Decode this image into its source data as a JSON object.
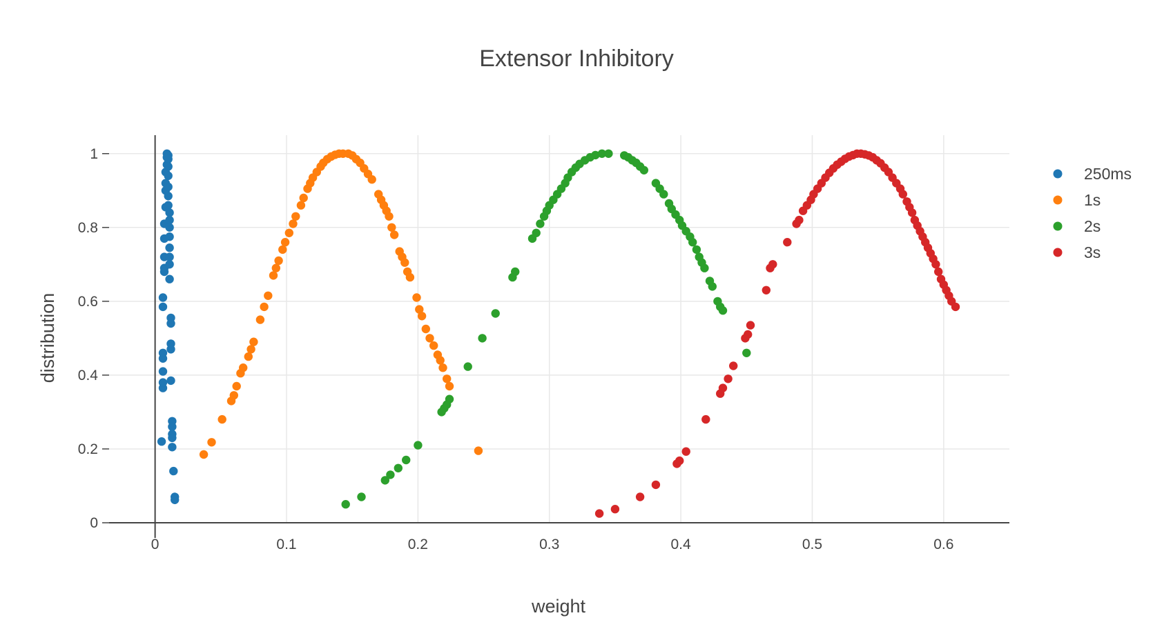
{
  "chart_data": {
    "type": "scatter",
    "title": "Extensor Inhibitory",
    "xlabel": "weight",
    "ylabel": "distribution",
    "xlim": [
      -0.035,
      0.65
    ],
    "ylim": [
      0,
      1.05
    ],
    "x_ticks": [
      0,
      0.1,
      0.2,
      0.3,
      0.4,
      0.5,
      0.6
    ],
    "x_tick_labels": [
      "0",
      "0.1",
      "0.2",
      "0.3",
      "0.4",
      "0.5",
      "0.6"
    ],
    "y_ticks": [
      0,
      0.2,
      0.4,
      0.6,
      0.8,
      1
    ],
    "y_tick_labels": [
      "0",
      "0.2",
      "0.4",
      "0.6",
      "0.8",
      "1"
    ],
    "grid": true,
    "legend_position": "top-right",
    "series": [
      {
        "name": "250ms",
        "color": "#1f77b4",
        "points": [
          [
            0.005,
            0.22
          ],
          [
            0.006,
            0.365
          ],
          [
            0.006,
            0.38
          ],
          [
            0.006,
            0.41
          ],
          [
            0.006,
            0.445
          ],
          [
            0.006,
            0.46
          ],
          [
            0.006,
            0.585
          ],
          [
            0.006,
            0.61
          ],
          [
            0.007,
            0.68
          ],
          [
            0.007,
            0.69
          ],
          [
            0.007,
            0.72
          ],
          [
            0.007,
            0.77
          ],
          [
            0.007,
            0.81
          ],
          [
            0.008,
            0.855
          ],
          [
            0.008,
            0.9
          ],
          [
            0.008,
            0.92
          ],
          [
            0.008,
            0.95
          ],
          [
            0.009,
            0.97
          ],
          [
            0.009,
            0.99
          ],
          [
            0.009,
            1.0
          ],
          [
            0.01,
            0.995
          ],
          [
            0.01,
            0.985
          ],
          [
            0.01,
            0.965
          ],
          [
            0.01,
            0.94
          ],
          [
            0.01,
            0.91
          ],
          [
            0.01,
            0.885
          ],
          [
            0.01,
            0.86
          ],
          [
            0.011,
            0.84
          ],
          [
            0.011,
            0.82
          ],
          [
            0.011,
            0.8
          ],
          [
            0.011,
            0.775
          ],
          [
            0.011,
            0.745
          ],
          [
            0.011,
            0.72
          ],
          [
            0.011,
            0.7
          ],
          [
            0.011,
            0.66
          ],
          [
            0.012,
            0.555
          ],
          [
            0.012,
            0.54
          ],
          [
            0.012,
            0.485
          ],
          [
            0.012,
            0.47
          ],
          [
            0.012,
            0.385
          ],
          [
            0.013,
            0.275
          ],
          [
            0.013,
            0.26
          ],
          [
            0.013,
            0.24
          ],
          [
            0.013,
            0.23
          ],
          [
            0.013,
            0.205
          ],
          [
            0.014,
            0.14
          ],
          [
            0.015,
            0.07
          ],
          [
            0.015,
            0.062
          ]
        ]
      },
      {
        "name": "1s",
        "color": "#ff7f0e",
        "points": [
          [
            0.037,
            0.185
          ],
          [
            0.043,
            0.218
          ],
          [
            0.051,
            0.28
          ],
          [
            0.058,
            0.33
          ],
          [
            0.06,
            0.345
          ],
          [
            0.062,
            0.37
          ],
          [
            0.065,
            0.405
          ],
          [
            0.067,
            0.42
          ],
          [
            0.071,
            0.45
          ],
          [
            0.073,
            0.47
          ],
          [
            0.075,
            0.49
          ],
          [
            0.08,
            0.55
          ],
          [
            0.083,
            0.585
          ],
          [
            0.086,
            0.615
          ],
          [
            0.09,
            0.67
          ],
          [
            0.092,
            0.69
          ],
          [
            0.094,
            0.71
          ],
          [
            0.097,
            0.74
          ],
          [
            0.099,
            0.76
          ],
          [
            0.102,
            0.785
          ],
          [
            0.105,
            0.81
          ],
          [
            0.107,
            0.83
          ],
          [
            0.111,
            0.86
          ],
          [
            0.113,
            0.88
          ],
          [
            0.116,
            0.905
          ],
          [
            0.118,
            0.92
          ],
          [
            0.12,
            0.935
          ],
          [
            0.123,
            0.95
          ],
          [
            0.126,
            0.965
          ],
          [
            0.128,
            0.975
          ],
          [
            0.131,
            0.985
          ],
          [
            0.134,
            0.992
          ],
          [
            0.137,
            0.997
          ],
          [
            0.14,
            1.0
          ],
          [
            0.143,
            1.0
          ],
          [
            0.147,
            1.0
          ],
          [
            0.15,
            0.995
          ],
          [
            0.153,
            0.985
          ],
          [
            0.156,
            0.975
          ],
          [
            0.159,
            0.96
          ],
          [
            0.162,
            0.945
          ],
          [
            0.165,
            0.93
          ],
          [
            0.17,
            0.89
          ],
          [
            0.172,
            0.875
          ],
          [
            0.174,
            0.86
          ],
          [
            0.176,
            0.845
          ],
          [
            0.178,
            0.83
          ],
          [
            0.18,
            0.8
          ],
          [
            0.182,
            0.78
          ],
          [
            0.186,
            0.735
          ],
          [
            0.188,
            0.72
          ],
          [
            0.19,
            0.705
          ],
          [
            0.192,
            0.68
          ],
          [
            0.194,
            0.665
          ],
          [
            0.199,
            0.61
          ],
          [
            0.201,
            0.578
          ],
          [
            0.203,
            0.56
          ],
          [
            0.206,
            0.525
          ],
          [
            0.209,
            0.5
          ],
          [
            0.212,
            0.48
          ],
          [
            0.215,
            0.455
          ],
          [
            0.217,
            0.44
          ],
          [
            0.219,
            0.42
          ],
          [
            0.222,
            0.39
          ],
          [
            0.224,
            0.37
          ],
          [
            0.246,
            0.195
          ]
        ]
      },
      {
        "name": "2s",
        "color": "#2ca02c",
        "points": [
          [
            0.145,
            0.05
          ],
          [
            0.157,
            0.07
          ],
          [
            0.175,
            0.115
          ],
          [
            0.179,
            0.13
          ],
          [
            0.185,
            0.148
          ],
          [
            0.191,
            0.17
          ],
          [
            0.2,
            0.21
          ],
          [
            0.218,
            0.3
          ],
          [
            0.22,
            0.31
          ],
          [
            0.222,
            0.32
          ],
          [
            0.224,
            0.335
          ],
          [
            0.238,
            0.423
          ],
          [
            0.249,
            0.5
          ],
          [
            0.259,
            0.567
          ],
          [
            0.272,
            0.665
          ],
          [
            0.274,
            0.68
          ],
          [
            0.287,
            0.77
          ],
          [
            0.29,
            0.785
          ],
          [
            0.293,
            0.81
          ],
          [
            0.296,
            0.83
          ],
          [
            0.298,
            0.845
          ],
          [
            0.3,
            0.86
          ],
          [
            0.303,
            0.875
          ],
          [
            0.306,
            0.89
          ],
          [
            0.309,
            0.905
          ],
          [
            0.312,
            0.92
          ],
          [
            0.314,
            0.935
          ],
          [
            0.317,
            0.95
          ],
          [
            0.32,
            0.962
          ],
          [
            0.323,
            0.972
          ],
          [
            0.327,
            0.982
          ],
          [
            0.331,
            0.99
          ],
          [
            0.335,
            0.996
          ],
          [
            0.34,
            1.0
          ],
          [
            0.345,
            1.0
          ],
          [
            0.357,
            0.995
          ],
          [
            0.36,
            0.99
          ],
          [
            0.363,
            0.982
          ],
          [
            0.366,
            0.975
          ],
          [
            0.369,
            0.965
          ],
          [
            0.372,
            0.955
          ],
          [
            0.381,
            0.92
          ],
          [
            0.384,
            0.905
          ],
          [
            0.387,
            0.89
          ],
          [
            0.391,
            0.865
          ],
          [
            0.393,
            0.85
          ],
          [
            0.396,
            0.835
          ],
          [
            0.399,
            0.82
          ],
          [
            0.401,
            0.805
          ],
          [
            0.404,
            0.79
          ],
          [
            0.407,
            0.775
          ],
          [
            0.409,
            0.76
          ],
          [
            0.412,
            0.74
          ],
          [
            0.414,
            0.72
          ],
          [
            0.416,
            0.705
          ],
          [
            0.418,
            0.69
          ],
          [
            0.422,
            0.655
          ],
          [
            0.424,
            0.64
          ],
          [
            0.428,
            0.6
          ],
          [
            0.43,
            0.585
          ],
          [
            0.432,
            0.575
          ],
          [
            0.45,
            0.46
          ]
        ]
      },
      {
        "name": "3s",
        "color": "#d62728",
        "points": [
          [
            0.338,
            0.025
          ],
          [
            0.35,
            0.037
          ],
          [
            0.369,
            0.07
          ],
          [
            0.381,
            0.103
          ],
          [
            0.397,
            0.16
          ],
          [
            0.399,
            0.168
          ],
          [
            0.404,
            0.193
          ],
          [
            0.419,
            0.28
          ],
          [
            0.43,
            0.35
          ],
          [
            0.432,
            0.365
          ],
          [
            0.436,
            0.39
          ],
          [
            0.44,
            0.425
          ],
          [
            0.449,
            0.5
          ],
          [
            0.451,
            0.51
          ],
          [
            0.453,
            0.535
          ],
          [
            0.465,
            0.63
          ],
          [
            0.468,
            0.69
          ],
          [
            0.47,
            0.7
          ],
          [
            0.481,
            0.76
          ],
          [
            0.488,
            0.81
          ],
          [
            0.49,
            0.82
          ],
          [
            0.493,
            0.845
          ],
          [
            0.496,
            0.86
          ],
          [
            0.499,
            0.875
          ],
          [
            0.501,
            0.89
          ],
          [
            0.504,
            0.905
          ],
          [
            0.507,
            0.92
          ],
          [
            0.51,
            0.935
          ],
          [
            0.513,
            0.948
          ],
          [
            0.516,
            0.96
          ],
          [
            0.519,
            0.97
          ],
          [
            0.522,
            0.978
          ],
          [
            0.525,
            0.986
          ],
          [
            0.528,
            0.992
          ],
          [
            0.531,
            0.996
          ],
          [
            0.534,
            1.0
          ],
          [
            0.537,
            1.0
          ],
          [
            0.54,
            0.998
          ],
          [
            0.543,
            0.995
          ],
          [
            0.546,
            0.99
          ],
          [
            0.549,
            0.982
          ],
          [
            0.552,
            0.974
          ],
          [
            0.555,
            0.962
          ],
          [
            0.558,
            0.95
          ],
          [
            0.561,
            0.935
          ],
          [
            0.564,
            0.92
          ],
          [
            0.567,
            0.905
          ],
          [
            0.569,
            0.89
          ],
          [
            0.572,
            0.87
          ],
          [
            0.574,
            0.855
          ],
          [
            0.576,
            0.84
          ],
          [
            0.578,
            0.82
          ],
          [
            0.58,
            0.805
          ],
          [
            0.582,
            0.79
          ],
          [
            0.584,
            0.775
          ],
          [
            0.586,
            0.76
          ],
          [
            0.588,
            0.745
          ],
          [
            0.59,
            0.73
          ],
          [
            0.592,
            0.715
          ],
          [
            0.594,
            0.7
          ],
          [
            0.596,
            0.68
          ],
          [
            0.598,
            0.66
          ],
          [
            0.6,
            0.645
          ],
          [
            0.602,
            0.63
          ],
          [
            0.604,
            0.615
          ],
          [
            0.606,
            0.6
          ],
          [
            0.609,
            0.585
          ]
        ]
      }
    ]
  }
}
